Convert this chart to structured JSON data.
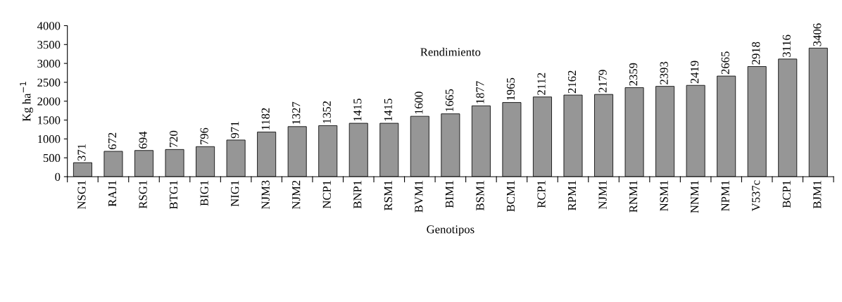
{
  "chart_data": {
    "type": "bar",
    "title": "Rendimiento",
    "xlabel": "Genotipos",
    "ylabel": "Kg ha$^{−1}$",
    "categories": [
      "NSG1",
      "RAJ1",
      "RSG1",
      "BTG1",
      "BIG1",
      "NIG1",
      "NJM3",
      "NJM2",
      "NCP1",
      "BNP1",
      "RSM1",
      "BVM1",
      "BIM1",
      "BSM1",
      "BCM1",
      "RCP1",
      "RPM1",
      "NJM1",
      "RNM1",
      "NSM1",
      "NNM1",
      "NPM1",
      "V537c",
      "BCP1",
      "BJM1"
    ],
    "values": [
      371,
      672,
      694,
      720,
      796,
      971,
      1182,
      1327,
      1352,
      1415,
      1415,
      1600,
      1665,
      1877,
      1965,
      2112,
      2162,
      2179,
      2359,
      2393,
      2419,
      2665,
      2918,
      3116,
      3406
    ],
    "color": "#969696",
    "data_labels": true,
    "ylim": [
      0,
      4000
    ],
    "yticks": [
      0,
      500,
      1000,
      1500,
      2000,
      2500,
      3000,
      3500,
      4000
    ],
    "grid": false,
    "legend": false
  }
}
